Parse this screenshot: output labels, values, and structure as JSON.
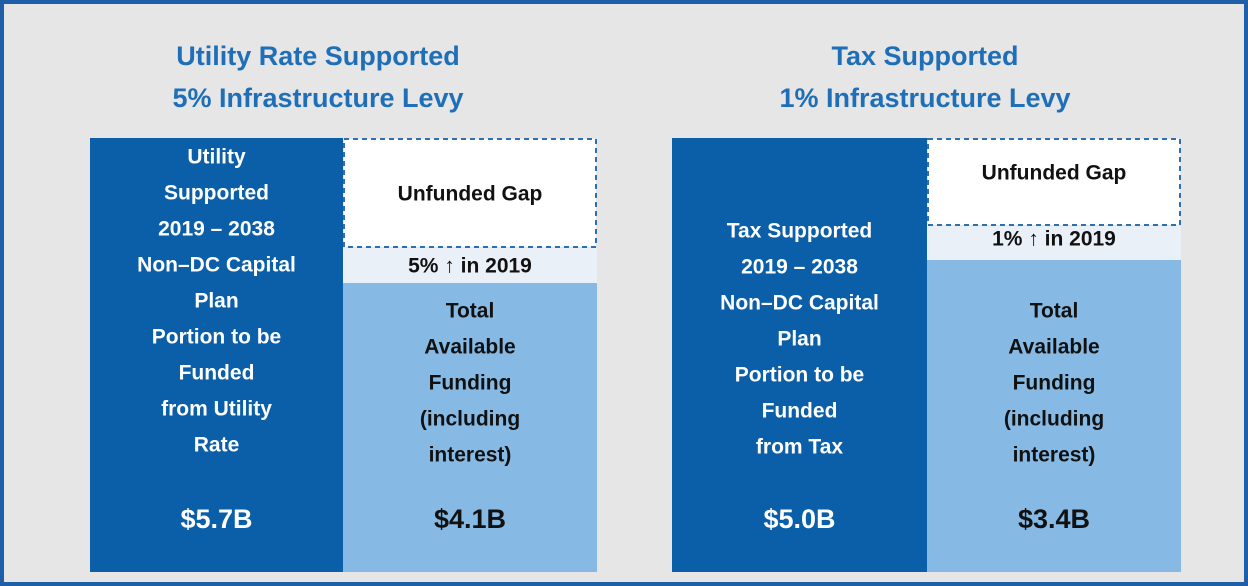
{
  "panels": [
    {
      "title": [
        "Utility Rate Supported",
        "5% Infrastructure Levy"
      ],
      "plan": [
        "Utility",
        "Supported",
        "2019 – 2038",
        "Non–DC Capital",
        "Plan",
        "Portion to be",
        "Funded",
        "from Utility",
        "Rate"
      ],
      "plan_amount": "$5.7B",
      "gap": "Unfunded Gap",
      "increase": "5% ↑ in 2019",
      "available": [
        "Total",
        "Available",
        "Funding",
        "(including",
        "interest)"
      ],
      "available_amount": "$4.1B"
    },
    {
      "title": [
        "Tax Supported",
        "1% Infrastructure Levy"
      ],
      "plan": [
        "Tax Supported",
        "2019 – 2038",
        "Non–DC Capital",
        "Plan",
        "Portion to be",
        "Funded",
        "from Tax"
      ],
      "plan_amount": "$5.0B",
      "gap": "Unfunded Gap",
      "increase": "1% ↑ in 2019",
      "available": [
        "Total",
        "Available",
        "Funding",
        "(including",
        "interest)"
      ],
      "available_amount": "$3.4B"
    }
  ]
}
